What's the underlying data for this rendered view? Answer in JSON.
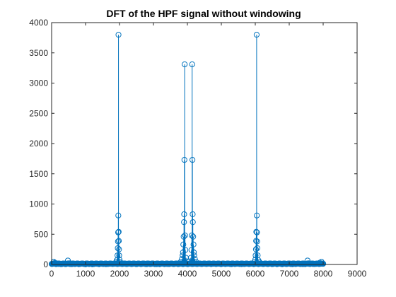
{
  "chart_data": {
    "type": "scatter",
    "style": "stem",
    "title": "DFT of the HPF signal without windowing",
    "xlabel": "",
    "ylabel": "",
    "xlim": [
      0,
      9000
    ],
    "ylim": [
      0,
      4000
    ],
    "x_ticks": [
      0,
      1000,
      2000,
      3000,
      4000,
      5000,
      6000,
      7000,
      8000,
      9000
    ],
    "y_ticks": [
      0,
      500,
      1000,
      1500,
      2000,
      2500,
      3000,
      3500,
      4000
    ],
    "x_tick_labels": [
      "0",
      "1000",
      "2000",
      "3000",
      "4000",
      "5000",
      "6000",
      "7000",
      "8000",
      "9000"
    ],
    "y_tick_labels": [
      "0",
      "500",
      "1000",
      "1500",
      "2000",
      "2500",
      "3000",
      "3500",
      "4000"
    ],
    "grid": false,
    "series_color": "#0072BD",
    "marker": "circle",
    "series": [
      {
        "points": [
          [
            20,
            12
          ],
          [
            60,
            45
          ],
          [
            100,
            28
          ],
          [
            150,
            15
          ],
          [
            200,
            9
          ],
          [
            300,
            6
          ],
          [
            400,
            8
          ],
          [
            480,
            65
          ],
          [
            520,
            20
          ],
          [
            600,
            6
          ],
          [
            800,
            4
          ],
          [
            1000,
            3
          ],
          [
            1200,
            3
          ],
          [
            1400,
            4
          ],
          [
            1600,
            5
          ],
          [
            1800,
            12
          ],
          [
            1900,
            40
          ],
          [
            1920,
            70
          ],
          [
            1940,
            150
          ],
          [
            1950,
            270
          ],
          [
            1955,
            380
          ],
          [
            1960,
            530
          ],
          [
            1965,
            810
          ],
          [
            1970,
            3800
          ],
          [
            1975,
            540
          ],
          [
            1980,
            390
          ],
          [
            1985,
            250
          ],
          [
            1990,
            150
          ],
          [
            2000,
            80
          ],
          [
            2020,
            40
          ],
          [
            2060,
            20
          ],
          [
            2200,
            8
          ],
          [
            2500,
            5
          ],
          [
            2800,
            5
          ],
          [
            3100,
            6
          ],
          [
            3400,
            8
          ],
          [
            3700,
            15
          ],
          [
            3800,
            40
          ],
          [
            3840,
            90
          ],
          [
            3860,
            150
          ],
          [
            3870,
            200
          ],
          [
            3880,
            330
          ],
          [
            3890,
            460
          ],
          [
            3900,
            700
          ],
          [
            3905,
            830
          ],
          [
            3912,
            1730
          ],
          [
            3920,
            3310
          ],
          [
            3930,
            480
          ],
          [
            3940,
            240
          ],
          [
            3960,
            110
          ],
          [
            4000,
            50
          ],
          [
            4060,
            50
          ],
          [
            4100,
            110
          ],
          [
            4120,
            240
          ],
          [
            4130,
            480
          ],
          [
            4140,
            3310
          ],
          [
            4148,
            1730
          ],
          [
            4155,
            830
          ],
          [
            4160,
            700
          ],
          [
            4170,
            460
          ],
          [
            4180,
            330
          ],
          [
            4190,
            200
          ],
          [
            4200,
            150
          ],
          [
            4220,
            90
          ],
          [
            4260,
            40
          ],
          [
            4400,
            12
          ],
          [
            4700,
            8
          ],
          [
            5000,
            6
          ],
          [
            5300,
            5
          ],
          [
            5600,
            6
          ],
          [
            5850,
            12
          ],
          [
            5980,
            40
          ],
          [
            6000,
            80
          ],
          [
            6010,
            150
          ],
          [
            6020,
            250
          ],
          [
            6025,
            390
          ],
          [
            6030,
            540
          ],
          [
            6040,
            3800
          ],
          [
            6045,
            810
          ],
          [
            6050,
            530
          ],
          [
            6055,
            380
          ],
          [
            6060,
            270
          ],
          [
            6070,
            150
          ],
          [
            6090,
            70
          ],
          [
            6120,
            40
          ],
          [
            6200,
            12
          ],
          [
            6500,
            5
          ],
          [
            6800,
            4
          ],
          [
            7100,
            4
          ],
          [
            7400,
            6
          ],
          [
            7540,
            65
          ],
          [
            7580,
            20
          ],
          [
            7700,
            8
          ],
          [
            7800,
            10
          ],
          [
            7900,
            28
          ],
          [
            7950,
            45
          ],
          [
            8000,
            12
          ]
        ]
      }
    ]
  }
}
